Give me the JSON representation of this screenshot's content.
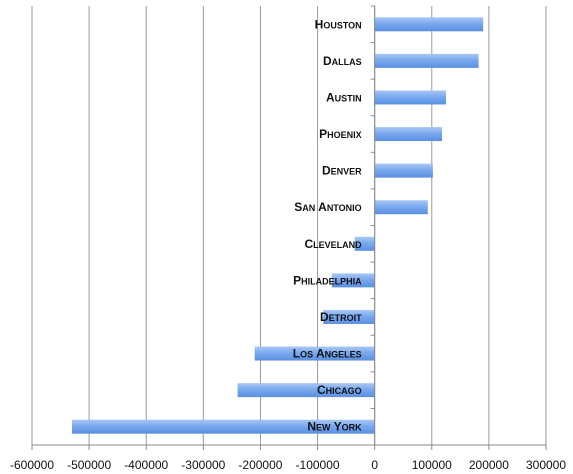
{
  "chart_data": {
    "type": "bar",
    "orientation": "horizontal",
    "categories": [
      "Houston",
      "Dallas",
      "Austin",
      "Phoenix",
      "Denver",
      "San Antonio",
      "Cleveland",
      "Philadelphia",
      "Detroit",
      "Los Angeles",
      "Chicago",
      "New York"
    ],
    "values": [
      190000,
      182000,
      125000,
      118000,
      102000,
      93000,
      -35000,
      -75000,
      -90000,
      -210000,
      -240000,
      -530000
    ],
    "xlim": [
      -600000,
      300000
    ],
    "x_ticks": [
      -600000,
      -500000,
      -400000,
      -300000,
      -200000,
      -100000,
      0,
      100000,
      200000,
      300000
    ],
    "grid": "vertical",
    "legend": "none",
    "bar_color": "#6d9eeb",
    "title": "",
    "xlabel": "",
    "ylabel": ""
  }
}
